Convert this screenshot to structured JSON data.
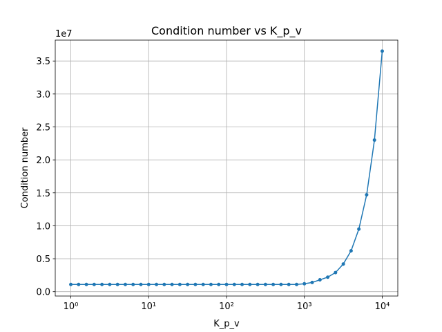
{
  "chart_data": {
    "type": "line",
    "title": "Condition number vs K_p_v",
    "x_label": "K_p_v",
    "y_label": "Condition number",
    "y_offset_label": "1e7",
    "x": [
      1,
      1.259,
      1.585,
      1.995,
      2.512,
      3.162,
      3.981,
      5.012,
      6.31,
      7.943,
      10,
      12.59,
      15.85,
      19.95,
      25.12,
      31.62,
      39.81,
      50.12,
      63.1,
      79.43,
      100,
      125.9,
      158.5,
      199.5,
      251.2,
      316.2,
      398.1,
      501.2,
      631,
      794.3,
      1000,
      1259,
      1585,
      1995,
      2512,
      3162,
      3981,
      5012,
      6310,
      7943,
      10000
    ],
    "series": [
      {
        "name": "Condition number",
        "color": "#1f77b4",
        "marker": "circle",
        "values": [
          0.11,
          0.11,
          0.11,
          0.11,
          0.11,
          0.11,
          0.11,
          0.11,
          0.11,
          0.11,
          0.11,
          0.11,
          0.11,
          0.11,
          0.11,
          0.11,
          0.11,
          0.11,
          0.11,
          0.11,
          0.11,
          0.11,
          0.11,
          0.11,
          0.11,
          0.11,
          0.11,
          0.11,
          0.11,
          0.11,
          0.12,
          0.14,
          0.18,
          0.22,
          0.29,
          0.42,
          0.62,
          0.95,
          1.47,
          2.3,
          3.65
        ]
      }
    ],
    "x_scale": "log",
    "xlim": [
      0.631,
      15849
    ],
    "xticks": [
      {
        "value": 1,
        "label": "10⁰"
      },
      {
        "value": 10,
        "label": "10¹"
      },
      {
        "value": 100,
        "label": "10²"
      },
      {
        "value": 1000,
        "label": "10³"
      },
      {
        "value": 10000,
        "label": "10⁴"
      }
    ],
    "ylim": [
      -0.066,
      3.817
    ],
    "yticks": [
      {
        "value": 0,
        "label": "0.0"
      },
      0.5,
      {
        "value": 1,
        "label": "1.0"
      },
      1.5,
      {
        "value": 2,
        "label": "2.0"
      },
      2.5,
      {
        "value": 3,
        "label": "3.0"
      },
      3.5
    ],
    "grid": true
  }
}
